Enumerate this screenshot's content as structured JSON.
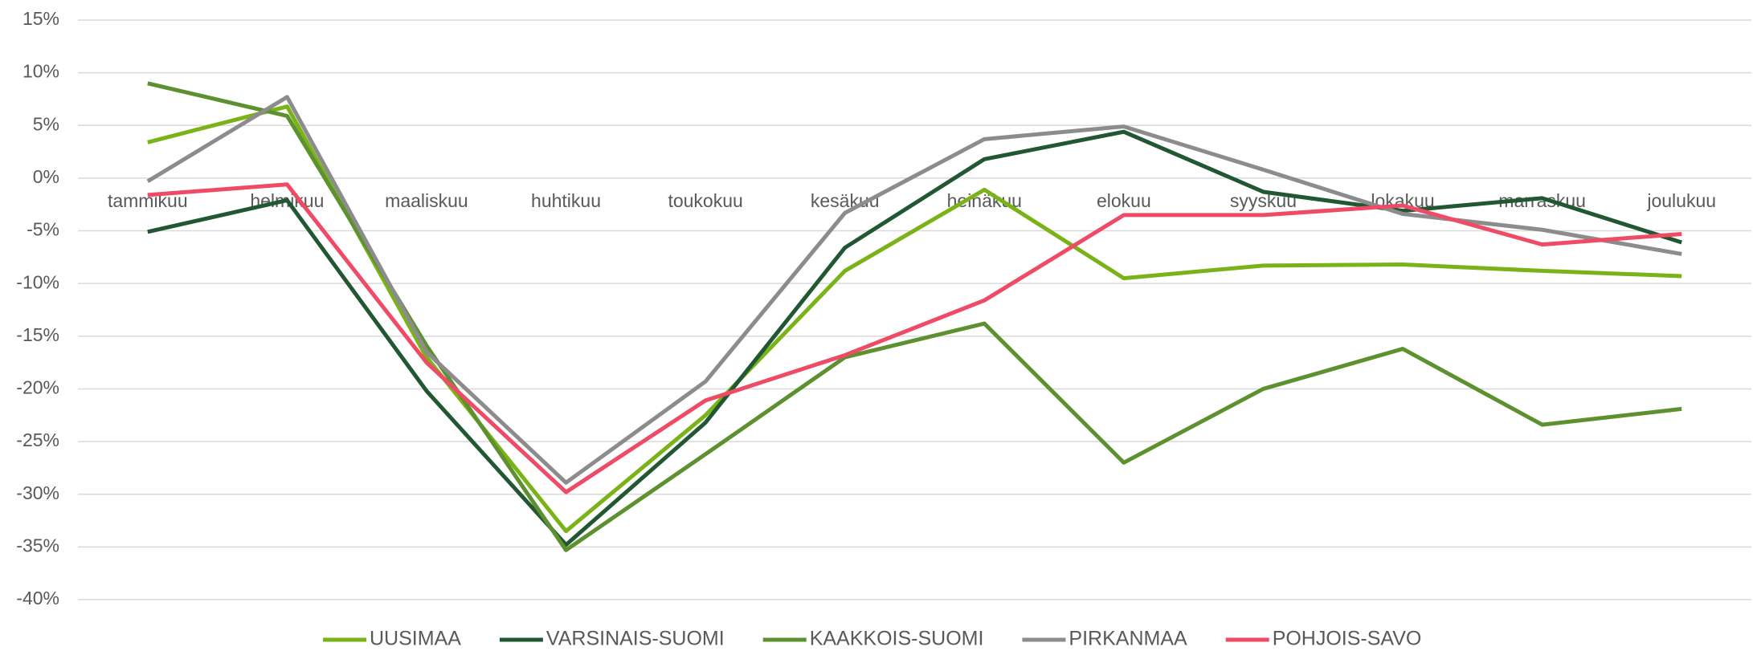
{
  "chart_data": {
    "type": "line",
    "categories": [
      "tammikuu",
      "helmikuu",
      "maaliskuu",
      "huhtikuu",
      "toukokuu",
      "kesäkuu",
      "heinäkuu",
      "elokuu",
      "syyskuu",
      "lokakuu",
      "marraskuu",
      "joulukuu"
    ],
    "series": [
      {
        "name": "UUSIMAA",
        "color": "#7ab317",
        "values": [
          3.4,
          6.8,
          -17,
          -33.5,
          -22.5,
          -8.8,
          -1.1,
          -9.5,
          -8.3,
          -8.2,
          -8.8,
          -9.3
        ]
      },
      {
        "name": "VARSINAIS-SUOMI",
        "color": "#215732",
        "values": [
          -5.1,
          -2.1,
          -20.2,
          -34.8,
          -23.2,
          -6.6,
          1.8,
          4.4,
          -1.3,
          -3.1,
          -1.9,
          -6.1
        ]
      },
      {
        "name": "KAAKKOIS-SUOMI",
        "color": "#5d9130",
        "values": [
          9.0,
          5.9,
          -15.9,
          -35.3,
          -26.2,
          -17.0,
          -13.8,
          -27.0,
          -20.0,
          -16.2,
          -23.4,
          -21.9
        ]
      },
      {
        "name": "PIRKANMAA",
        "color": "#8c8c8c",
        "values": [
          -0.3,
          7.7,
          -16.5,
          -28.9,
          -19.3,
          -3.3,
          3.7,
          4.9,
          0.8,
          -3.4,
          -4.9,
          -7.2
        ]
      },
      {
        "name": "POHJOIS-SAVO",
        "color": "#ef4a66",
        "values": [
          -1.6,
          -0.6,
          -17.5,
          -29.8,
          -21.1,
          -16.8,
          -11.6,
          -3.5,
          -3.5,
          -2.6,
          -6.3,
          -5.3
        ]
      }
    ],
    "ylim": [
      -40,
      15
    ],
    "yticks": [
      {
        "value": -40,
        "label": "-40%"
      },
      {
        "value": -35,
        "label": "-35%"
      },
      {
        "value": -30,
        "label": "-30%"
      },
      {
        "value": -25,
        "label": "-25%"
      },
      {
        "value": -20,
        "label": "-20%"
      },
      {
        "value": -15,
        "label": "-15%"
      },
      {
        "value": -10,
        "label": "-10%"
      },
      {
        "value": -5,
        "label": "-5%"
      },
      {
        "value": 0,
        "label": "0%"
      },
      {
        "value": 5,
        "label": "5%"
      },
      {
        "value": 10,
        "label": "10%"
      },
      {
        "value": 15,
        "label": "15%"
      }
    ],
    "grid": true,
    "legend": "bottom"
  }
}
